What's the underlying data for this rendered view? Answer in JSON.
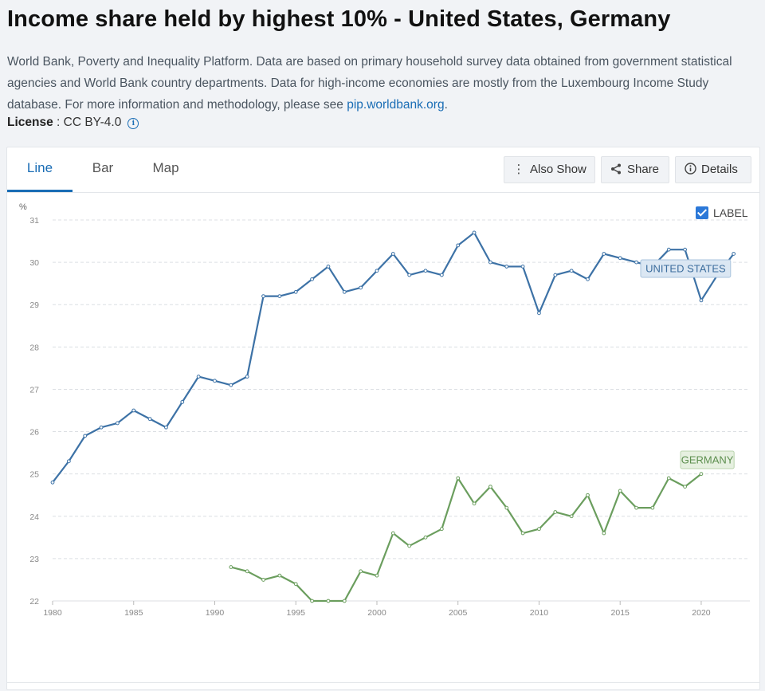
{
  "header": {
    "title": "Income share held by highest 10% - United States, Germany",
    "source_text": "World Bank, Poverty and Inequality Platform. Data are based on primary household survey data obtained from government statistical agencies and World Bank country departments. Data for high-income economies are mostly from the Luxembourg Income Study database. For more information and methodology, please see ",
    "source_link": "pip.worldbank.org",
    "source_end": ".",
    "license_label": "License",
    "license_value": " : CC BY-4.0"
  },
  "tabs": [
    {
      "label": "Line",
      "active": true
    },
    {
      "label": "Bar",
      "active": false
    },
    {
      "label": "Map",
      "active": false
    }
  ],
  "toolbar": {
    "also_show": "Also Show",
    "share": "Share",
    "details": "Details"
  },
  "label_toggle": {
    "label": "LABEL",
    "checked": true
  },
  "colors": {
    "us": "#3d72a6",
    "de": "#6b9e5e",
    "grid": "#dcdfe3"
  },
  "chart_data": {
    "type": "line",
    "ylabel": "%",
    "ylim": [
      22,
      31
    ],
    "xlim": [
      1980,
      2023
    ],
    "yticks": [
      22,
      23,
      24,
      25,
      26,
      27,
      28,
      29,
      30,
      31
    ],
    "xticks": [
      1980,
      1985,
      1990,
      1995,
      2000,
      2005,
      2010,
      2015,
      2020
    ],
    "grid": true,
    "series": [
      {
        "name": "UNITED STATES",
        "x": [
          1980,
          1981,
          1982,
          1983,
          1984,
          1985,
          1986,
          1987,
          1988,
          1989,
          1990,
          1991,
          1992,
          1993,
          1994,
          1995,
          1996,
          1997,
          1998,
          1999,
          2000,
          2001,
          2002,
          2003,
          2004,
          2005,
          2006,
          2007,
          2008,
          2009,
          2010,
          2011,
          2012,
          2013,
          2014,
          2015,
          2016,
          2017,
          2018,
          2019,
          2020,
          2021,
          2022
        ],
        "y": [
          24.8,
          25.3,
          25.9,
          26.1,
          26.2,
          26.5,
          26.3,
          26.1,
          26.7,
          27.3,
          27.2,
          27.1,
          27.3,
          29.2,
          29.2,
          29.3,
          29.6,
          29.9,
          29.3,
          29.4,
          29.8,
          30.2,
          29.7,
          29.8,
          29.7,
          30.4,
          30.7,
          30.0,
          29.9,
          29.9,
          28.8,
          29.7,
          29.8,
          29.6,
          30.2,
          30.1,
          30.0,
          29.9,
          30.3,
          30.3,
          29.1,
          29.7,
          30.2
        ]
      },
      {
        "name": "GERMANY",
        "x": [
          1991,
          1992,
          1993,
          1994,
          1995,
          1996,
          1997,
          1998,
          1999,
          2000,
          2001,
          2002,
          2003,
          2004,
          2005,
          2006,
          2007,
          2008,
          2009,
          2010,
          2011,
          2012,
          2013,
          2014,
          2015,
          2016,
          2017,
          2018,
          2019,
          2020
        ],
        "y": [
          22.8,
          22.7,
          22.5,
          22.6,
          22.4,
          22.0,
          22.0,
          22.0,
          22.7,
          22.6,
          23.6,
          23.3,
          23.5,
          23.7,
          24.9,
          24.3,
          24.7,
          24.2,
          23.6,
          23.7,
          24.1,
          24.0,
          24.5,
          23.6,
          24.6,
          24.2,
          24.2,
          24.9,
          24.7,
          25.0
        ]
      }
    ]
  }
}
